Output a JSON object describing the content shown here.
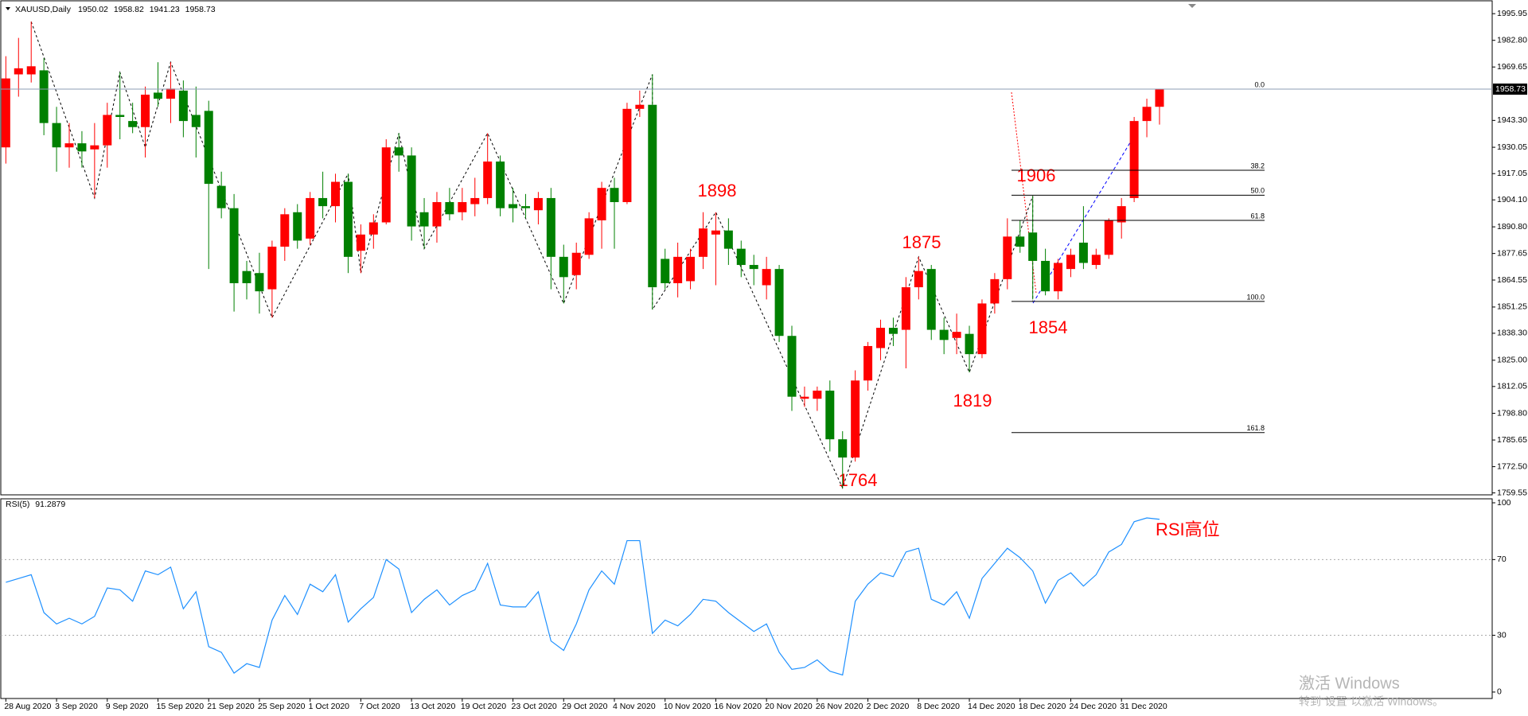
{
  "chart_data": [
    {
      "type": "candlestick",
      "title": "XAUUSD,Daily",
      "up_color": "#ff0000",
      "down_color": "#008000",
      "candles": [
        [
          1930,
          1975,
          1922,
          1964
        ],
        [
          1966,
          1984,
          1955,
          1969
        ],
        [
          1966,
          1992,
          1962,
          1970
        ],
        [
          1968,
          1974,
          1936,
          1942
        ],
        [
          1942,
          1950,
          1918,
          1930
        ],
        [
          1930,
          1942,
          1920,
          1932
        ],
        [
          1932,
          1938,
          1920,
          1928
        ],
        [
          1929,
          1942,
          1905,
          1931
        ],
        [
          1931,
          1952,
          1920,
          1946
        ],
        [
          1946,
          1967,
          1934,
          1945
        ],
        [
          1943,
          1952,
          1937,
          1940
        ],
        [
          1940,
          1960,
          1925,
          1956
        ],
        [
          1957,
          1972,
          1950,
          1954
        ],
        [
          1954,
          1972,
          1942,
          1959
        ],
        [
          1958,
          1963,
          1935,
          1943
        ],
        [
          1946,
          1960,
          1925,
          1940
        ],
        [
          1948,
          1953,
          1870,
          1912
        ],
        [
          1911,
          1918,
          1895,
          1900
        ],
        [
          1900,
          1907,
          1849,
          1863
        ],
        [
          1869,
          1874,
          1855,
          1863
        ],
        [
          1868,
          1878,
          1848,
          1859
        ],
        [
          1860,
          1884,
          1846,
          1881
        ],
        [
          1881,
          1900,
          1874,
          1897
        ],
        [
          1898,
          1902,
          1880,
          1884
        ],
        [
          1885,
          1908,
          1882,
          1905
        ],
        [
          1905,
          1918,
          1895,
          1901
        ],
        [
          1901,
          1917,
          1893,
          1913
        ],
        [
          1913,
          1917,
          1868,
          1876
        ],
        [
          1879,
          1892,
          1868,
          1887
        ],
        [
          1887,
          1897,
          1880,
          1893
        ],
        [
          1893,
          1934,
          1892,
          1930
        ],
        [
          1930,
          1937,
          1918,
          1926
        ],
        [
          1926,
          1930,
          1884,
          1891
        ],
        [
          1898,
          1905,
          1880,
          1891
        ],
        [
          1891,
          1908,
          1883,
          1903
        ],
        [
          1903,
          1910,
          1894,
          1897
        ],
        [
          1898,
          1910,
          1894,
          1903
        ],
        [
          1902,
          1915,
          1896,
          1905
        ],
        [
          1905,
          1937,
          1902,
          1923
        ],
        [
          1923,
          1926,
          1896,
          1900
        ],
        [
          1902,
          1910,
          1893,
          1900
        ],
        [
          1901,
          1907,
          1895,
          1900
        ],
        [
          1899,
          1908,
          1892,
          1905
        ],
        [
          1905,
          1910,
          1860,
          1876
        ],
        [
          1876,
          1882,
          1853,
          1866
        ],
        [
          1867,
          1883,
          1860,
          1878
        ],
        [
          1877,
          1898,
          1875,
          1895
        ],
        [
          1894,
          1913,
          1880,
          1910
        ],
        [
          1910,
          1915,
          1880,
          1903
        ],
        [
          1903,
          1952,
          1902,
          1949
        ],
        [
          1949,
          1958,
          1945,
          1951
        ],
        [
          1951,
          1966,
          1850,
          1861
        ],
        [
          1875,
          1880,
          1860,
          1863
        ],
        [
          1863,
          1883,
          1856,
          1876
        ],
        [
          1864,
          1880,
          1860,
          1876
        ],
        [
          1876,
          1898,
          1870,
          1890
        ],
        [
          1887,
          1898,
          1862,
          1889
        ],
        [
          1889,
          1895,
          1872,
          1880
        ],
        [
          1880,
          1884,
          1866,
          1872
        ],
        [
          1872,
          1877,
          1862,
          1870
        ],
        [
          1862,
          1876,
          1855,
          1870
        ],
        [
          1870,
          1872,
          1834,
          1837
        ],
        [
          1837,
          1842,
          1800,
          1807
        ],
        [
          1806,
          1812,
          1802,
          1807
        ],
        [
          1806,
          1812,
          1800,
          1810
        ],
        [
          1810,
          1815,
          1780,
          1786
        ],
        [
          1786,
          1790,
          1762,
          1777
        ],
        [
          1777,
          1820,
          1775,
          1815
        ],
        [
          1815,
          1834,
          1810,
          1832
        ],
        [
          1831,
          1845,
          1825,
          1841
        ],
        [
          1841,
          1846,
          1832,
          1838
        ],
        [
          1840,
          1866,
          1821,
          1861
        ],
        [
          1861,
          1876,
          1855,
          1869
        ],
        [
          1870,
          1872,
          1835,
          1840
        ],
        [
          1840,
          1846,
          1828,
          1835
        ],
        [
          1836,
          1848,
          1828,
          1839
        ],
        [
          1838,
          1842,
          1819,
          1828
        ],
        [
          1828,
          1855,
          1826,
          1853
        ],
        [
          1853,
          1868,
          1848,
          1865
        ],
        [
          1865,
          1895,
          1860,
          1886
        ],
        [
          1886,
          1894,
          1878,
          1881
        ],
        [
          1888,
          1906,
          1855,
          1874
        ],
        [
          1874,
          1880,
          1857,
          1859
        ],
        [
          1859,
          1875,
          1855,
          1873
        ],
        [
          1870,
          1880,
          1866,
          1877
        ],
        [
          1883,
          1901,
          1870,
          1873
        ],
        [
          1872,
          1880,
          1870,
          1877
        ],
        [
          1877,
          1895,
          1875,
          1894
        ],
        [
          1893,
          1905,
          1885,
          1901
        ],
        [
          1905,
          1945,
          1903,
          1943
        ],
        [
          1943,
          1954,
          1935,
          1950
        ],
        [
          1950.02,
          1958.82,
          1941.23,
          1958.73
        ]
      ],
      "ylim": [
        1758.6,
        2002.3
      ],
      "yticks": [
        1995.95,
        {
          "value": 1982.8,
          "label": "1982.80"
        },
        1969.65,
        {
          "value": 1943.3,
          "label": "1943.30"
        },
        1930.05,
        1917.05,
        {
          "value": 1904.1,
          "label": "1904.10"
        },
        {
          "value": 1890.8,
          "label": "1890.80"
        },
        1877.65,
        1864.55,
        1851.25,
        {
          "value": 1838.3,
          "label": "1838.30"
        },
        {
          "value": 1825,
          "label": "1825.00"
        },
        1812.05,
        {
          "value": 1798.8,
          "label": "1798.80"
        },
        1785.65,
        {
          "value": 1772.5,
          "label": "1772.50"
        },
        1759.55
      ],
      "xticks": [
        {
          "value": 0,
          "label": "28 Aug 2020"
        },
        {
          "value": 4,
          "label": "3 Sep 2020"
        },
        {
          "value": 8,
          "label": "9 Sep 2020"
        },
        {
          "value": 12,
          "label": "15 Sep 2020"
        },
        {
          "value": 16,
          "label": "21 Sep 2020"
        },
        {
          "value": 20,
          "label": "25 Sep 2020"
        },
        {
          "value": 24,
          "label": "1 Oct 2020"
        },
        {
          "value": 28,
          "label": "7 Oct 2020"
        },
        {
          "value": 32,
          "label": "13 Oct 2020"
        },
        {
          "value": 36,
          "label": "19 Oct 2020"
        },
        {
          "value": 40,
          "label": "23 Oct 2020"
        },
        {
          "value": 44,
          "label": "29 Oct 2020"
        },
        {
          "value": 48,
          "label": "4 Nov 2020"
        },
        {
          "value": 52,
          "label": "10 Nov 2020"
        },
        {
          "value": 56,
          "label": "16 Nov 2020"
        },
        {
          "value": 60,
          "label": "20 Nov 2020"
        },
        {
          "value": 64,
          "label": "26 Nov 2020"
        },
        {
          "value": 68,
          "label": "2 Dec 2020"
        },
        {
          "value": 72,
          "label": "8 Dec 2020"
        },
        {
          "value": 76,
          "label": "14 Dec 2020"
        },
        {
          "value": 80,
          "label": "18 Dec 2020"
        },
        {
          "value": 84,
          "label": "24 Dec 2020"
        },
        {
          "value": 88,
          "label": "31 Dec 2020"
        }
      ],
      "fib_levels": [
        {
          "label": "0.0",
          "price": 1958.73
        },
        {
          "label": "38.2",
          "price": 1918.7
        },
        {
          "label": "50.0",
          "price": 1906.4
        },
        {
          "label": "61.8",
          "price": 1894.0
        },
        {
          "label": "100.0",
          "price": 1854
        },
        {
          "label": "161.8",
          "price": 1789.3
        }
      ],
      "zigzag": {
        "x": [
          2,
          7,
          9,
          11,
          13,
          21,
          27,
          28,
          31,
          33,
          38,
          44,
          51,
          51,
          56,
          66,
          72,
          76,
          81,
          81
        ],
        "y": [
          1992,
          1905,
          1967,
          1930,
          1972,
          1846,
          1917,
          1868,
          1937,
          1880,
          1937,
          1853,
          1966,
          1850,
          1898,
          1762,
          1876,
          1819,
          1906,
          1854
        ]
      },
      "annotations": [
        "1898",
        "1875",
        "1906",
        "1854",
        "1819",
        "1764"
      ]
    },
    {
      "type": "line",
      "title": "RSI(5)",
      "color": "#1e90ff",
      "values": [
        58,
        60,
        62,
        42,
        36,
        39,
        36,
        40,
        55,
        54,
        48,
        64,
        62,
        66,
        44,
        53,
        24,
        21,
        10,
        15,
        13,
        38,
        51,
        41,
        57,
        53,
        62,
        37,
        44,
        50,
        70,
        65,
        42,
        49,
        54,
        46,
        51,
        54,
        68,
        46,
        45,
        45,
        53,
        27,
        22,
        36,
        54,
        64,
        57,
        80,
        80,
        31,
        38,
        35,
        41,
        49,
        48,
        42,
        37,
        32,
        36,
        21,
        12,
        13,
        17,
        11,
        9,
        48,
        57,
        63,
        61,
        74,
        76,
        49,
        46,
        53,
        39,
        60,
        68,
        76,
        71,
        64,
        47,
        59,
        63,
        56,
        62,
        74,
        78,
        90,
        92,
        91.2879
      ],
      "ylim": [
        -3.4,
        102.1
      ],
      "yticks": [
        100,
        70,
        30,
        0
      ],
      "levels": [
        70,
        30
      ],
      "annotation": "RSI高位"
    }
  ],
  "watermark": {
    "title": "激活 Windows",
    "subtitle": "转到“设置”以激活 Windows。"
  }
}
